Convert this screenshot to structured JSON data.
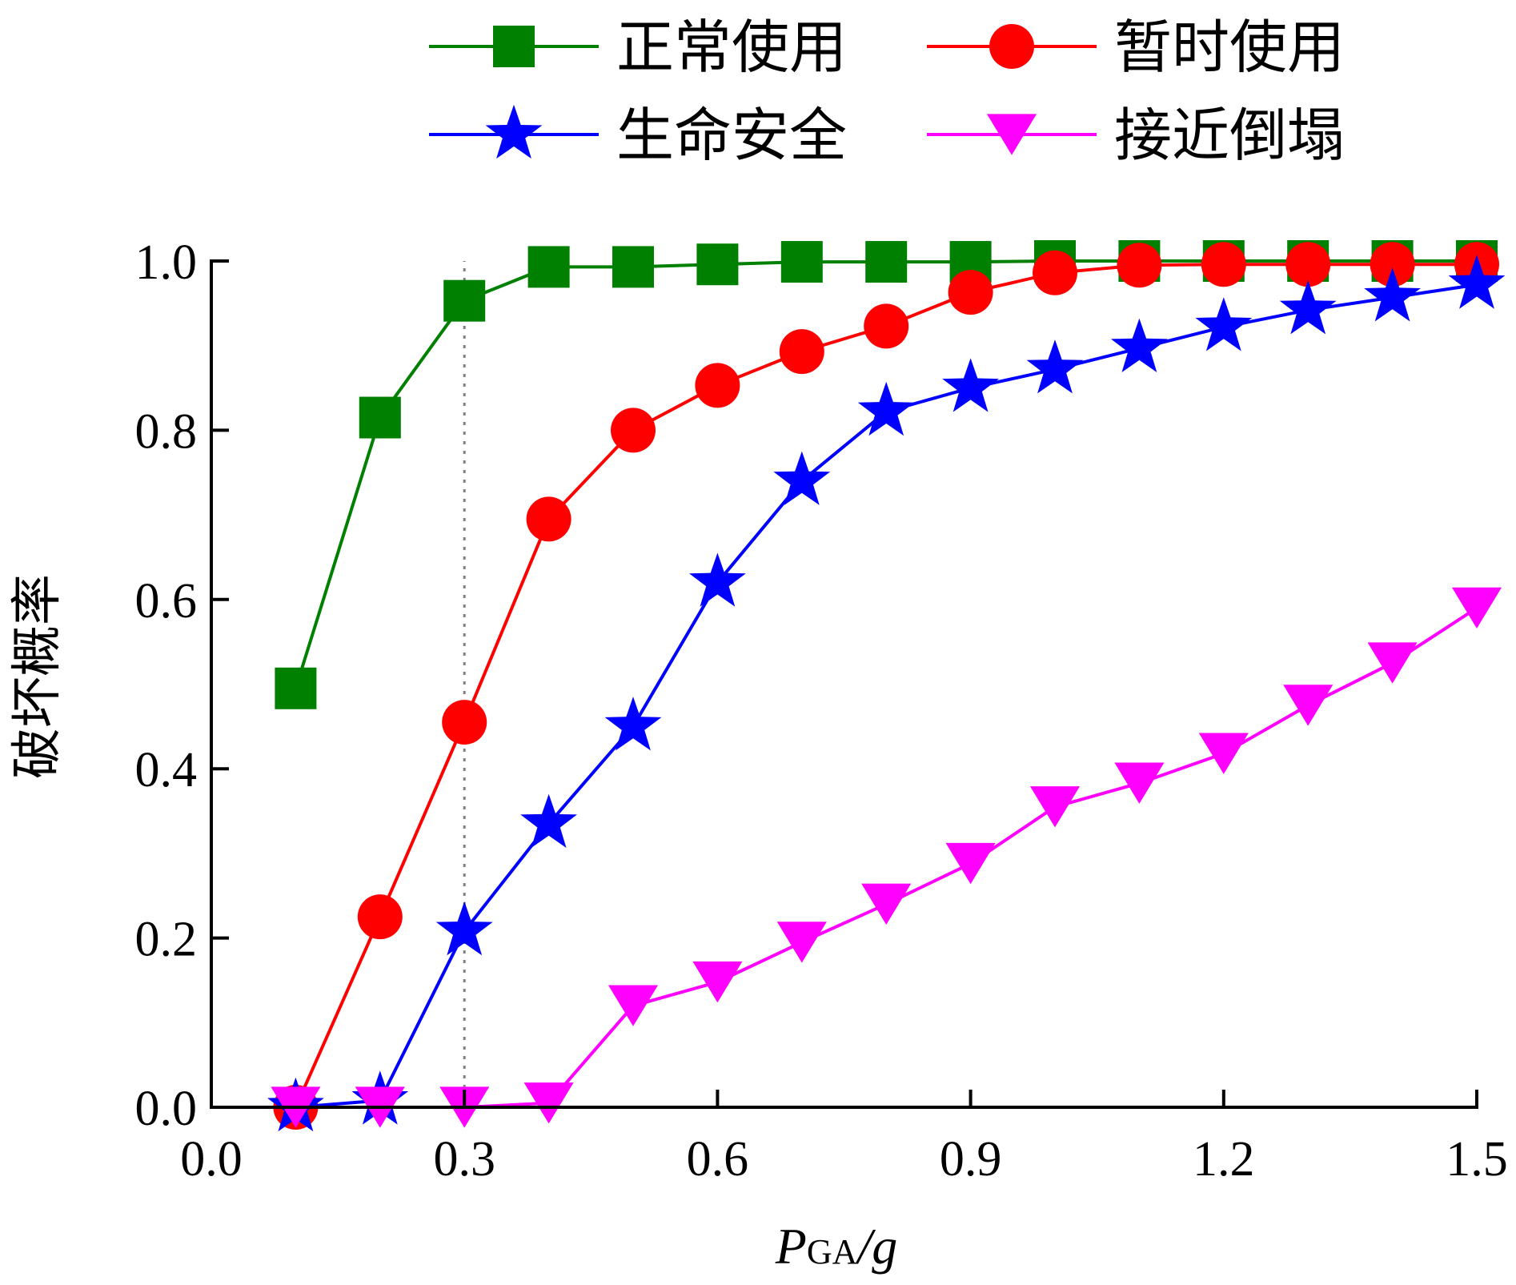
{
  "chart_data": {
    "type": "line",
    "title": "",
    "xlabel": {
      "main": "P",
      "sub": "GA",
      "tail": "/g"
    },
    "ylabel": "破坏概率",
    "xlim": [
      0.0,
      1.5
    ],
    "ylim": [
      0.0,
      1.0
    ],
    "x_ticks": [
      "0.0",
      "0.3",
      "0.6",
      "0.9",
      "1.2",
      "1.5"
    ],
    "y_ticks": [
      "0.0",
      "0.2",
      "0.4",
      "0.6",
      "0.8",
      "1.0"
    ],
    "x_tick_values": [
      0.0,
      0.3,
      0.6,
      0.9,
      1.2,
      1.5
    ],
    "y_tick_values": [
      0.0,
      0.2,
      0.4,
      0.6,
      0.8,
      1.0
    ],
    "grid": false,
    "legend_position": "top",
    "reference_line": {
      "x": 0.3,
      "style": "dotted",
      "color": "#808080"
    },
    "x": [
      0.1,
      0.2,
      0.3,
      0.4,
      0.5,
      0.6,
      0.7,
      0.8,
      0.9,
      1.0,
      1.1,
      1.2,
      1.3,
      1.4,
      1.5
    ],
    "series": [
      {
        "name": "正常使用",
        "color": "#008000",
        "marker": "square",
        "values": [
          0.495,
          0.815,
          0.953,
          0.993,
          0.993,
          0.996,
          0.999,
          0.999,
          0.999,
          1.0,
          1.0,
          1.0,
          1.0,
          1.0,
          1.0
        ]
      },
      {
        "name": "暂时使用",
        "color": "#ff0000",
        "marker": "circle",
        "values": [
          0.0,
          0.225,
          0.455,
          0.695,
          0.8,
          0.853,
          0.893,
          0.923,
          0.963,
          0.986,
          0.995,
          0.996,
          0.996,
          0.996,
          0.996
        ]
      },
      {
        "name": "生命安全",
        "color": "#0000ff",
        "marker": "star",
        "values": [
          0.0,
          0.008,
          0.208,
          0.335,
          0.45,
          0.62,
          0.74,
          0.822,
          0.85,
          0.872,
          0.897,
          0.922,
          0.942,
          0.957,
          0.972
        ]
      },
      {
        "name": "接近倒塌",
        "color": "#ff00ff",
        "marker": "triangle-down",
        "values": [
          0.0,
          0.0,
          0.0,
          0.005,
          0.12,
          0.148,
          0.195,
          0.24,
          0.288,
          0.355,
          0.383,
          0.418,
          0.475,
          0.525,
          0.59
        ]
      }
    ]
  }
}
